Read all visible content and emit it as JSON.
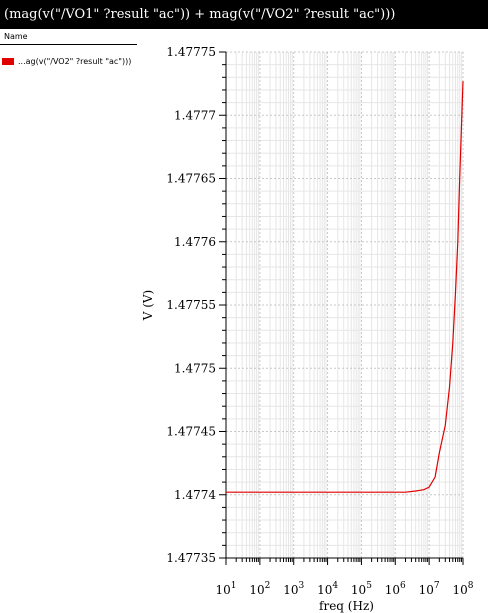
{
  "window": {
    "title": "(mag(v(\"/VO1\" ?result \"ac\")) + mag(v(\"/VO2\" ?result \"ac\")))"
  },
  "legend": {
    "header": "Name",
    "entries": [
      {
        "label": "...ag(v(\"/VO2\" ?result \"ac\")))",
        "color": "#e00000"
      }
    ]
  },
  "chart_data": {
    "type": "line",
    "xlabel": "freq (Hz)",
    "ylabel": "V (V)",
    "xscale": "log",
    "xlim": [
      10,
      100000000
    ],
    "ylim": [
      1.47735,
      1.47775
    ],
    "grid": true,
    "x_ticks": [
      {
        "base": "10",
        "exp": "1"
      },
      {
        "base": "10",
        "exp": "2"
      },
      {
        "base": "10",
        "exp": "3"
      },
      {
        "base": "10",
        "exp": "4"
      },
      {
        "base": "10",
        "exp": "5"
      },
      {
        "base": "10",
        "exp": "6"
      },
      {
        "base": "10",
        "exp": "7"
      },
      {
        "base": "10",
        "exp": "8"
      }
    ],
    "y_ticks": [
      "1.47735",
      "1.4774",
      "1.47745",
      "1.4775",
      "1.47755",
      "1.4776",
      "1.47765",
      "1.4777",
      "1.47775"
    ],
    "series": [
      {
        "color": "#e00000",
        "x": [
          10,
          100,
          1000,
          10000,
          100000,
          1000000,
          2000000,
          4000000,
          7000000,
          10000000,
          15000000,
          20000000,
          30000000,
          40000000,
          50000000,
          60000000,
          70000000,
          80000000,
          100000000
        ],
        "y": [
          1.477402,
          1.477402,
          1.477402,
          1.477402,
          1.477402,
          1.477402,
          1.477402,
          1.477403,
          1.477404,
          1.477406,
          1.477414,
          1.477433,
          1.477455,
          1.477485,
          1.47752,
          1.47756,
          1.4776,
          1.47765,
          1.477727
        ]
      }
    ]
  }
}
